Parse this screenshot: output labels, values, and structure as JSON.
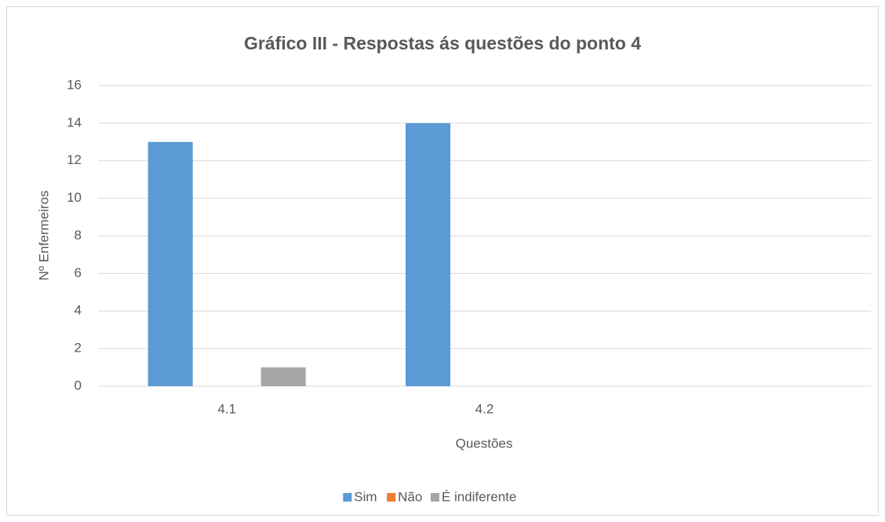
{
  "chart_data": {
    "type": "bar",
    "title": "Gráfico III - Respostas ás questões do ponto 4",
    "x_label": "Questões",
    "y_label": "Nº Enfermeiros",
    "categories": [
      "4.1",
      "4.2",
      null
    ],
    "series": [
      {
        "name": "Sim",
        "color": "#5b9bd5",
        "values": [
          13,
          14,
          null
        ]
      },
      {
        "name": "Não",
        "color": "#ed7d31",
        "values": [
          0,
          0,
          null
        ]
      },
      {
        "name": "É indiferente",
        "color": "#a5a5a5",
        "values": [
          1,
          0,
          null
        ]
      }
    ],
    "ylim": [
      0,
      16
    ],
    "yticks": [
      0,
      2,
      4,
      6,
      8,
      10,
      12,
      14,
      16
    ],
    "grid": true,
    "legend": "bottom"
  }
}
